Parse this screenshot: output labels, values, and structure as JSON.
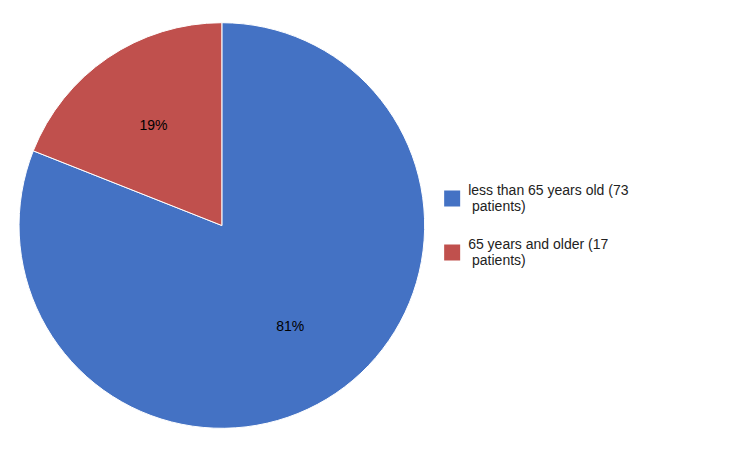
{
  "chart_data": {
    "type": "pie",
    "categories": [
      "less than 65 years old (73\n patients)",
      "65 years and older (17\n patients)"
    ],
    "values": [
      81,
      19
    ],
    "value_labels": [
      "81%",
      "19%"
    ],
    "colors": [
      "#4472C4",
      "#C0504D"
    ],
    "data_labels": true,
    "legend": "right"
  }
}
